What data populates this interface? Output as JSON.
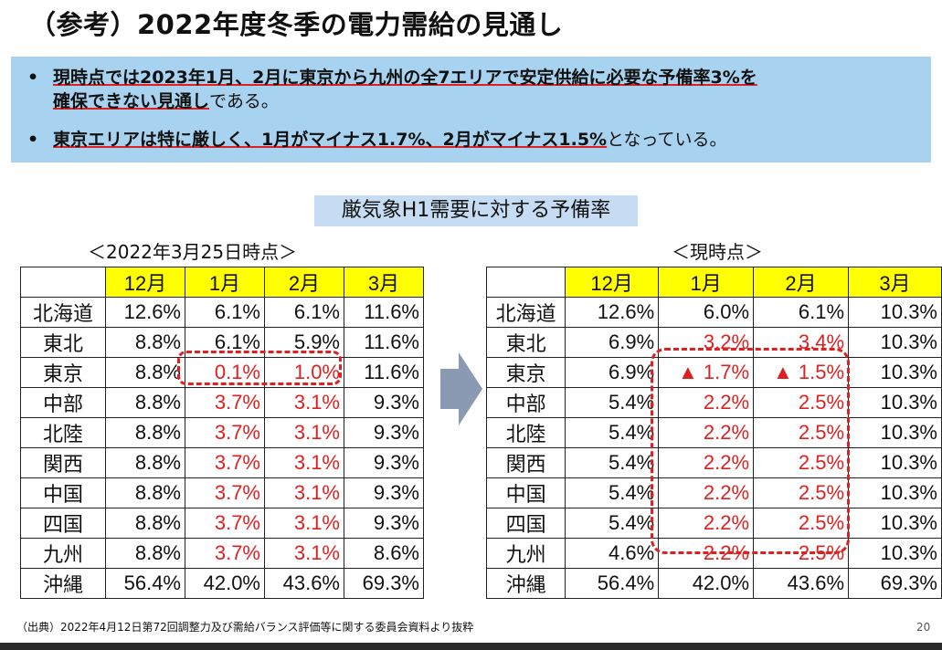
{
  "title": "（参考）2022年度冬季の電力需給の見通し",
  "summary": {
    "bullet_mark": "•",
    "bullet1_bold_a": "現時点では2023年1月、2月に東京から九州の全7エリアで安定供給に必要な予備率3%を",
    "bullet1_bold_b": "確保できない見通し",
    "bullet1_tail": "である。",
    "bullet2_bold": "東京エリアは特に厳しく、1月がマイナス1.7%、2月がマイナス1.5%",
    "bullet2_tail": "となっている。"
  },
  "chart_title": "厳気象H1需要に対する予備率",
  "left_table": {
    "caption": "＜2022年3月25日時点＞",
    "headers": [
      "12月",
      "1月",
      "2月",
      "3月"
    ],
    "rows": [
      {
        "region": "北海道",
        "v": [
          "12.6%",
          "6.1%",
          "6.1%",
          "11.6%"
        ]
      },
      {
        "region": "東北",
        "v": [
          "8.8%",
          "6.1%",
          "5.9%",
          "11.6%"
        ]
      },
      {
        "region": "東京",
        "v": [
          "8.8%",
          "0.1%",
          "1.0%",
          "11.6%"
        ]
      },
      {
        "region": "中部",
        "v": [
          "8.8%",
          "3.7%",
          "3.1%",
          "9.3%"
        ]
      },
      {
        "region": "北陸",
        "v": [
          "8.8%",
          "3.7%",
          "3.1%",
          "9.3%"
        ]
      },
      {
        "region": "関西",
        "v": [
          "8.8%",
          "3.7%",
          "3.1%",
          "9.3%"
        ]
      },
      {
        "region": "中国",
        "v": [
          "8.8%",
          "3.7%",
          "3.1%",
          "9.3%"
        ]
      },
      {
        "region": "四国",
        "v": [
          "8.8%",
          "3.7%",
          "3.1%",
          "9.3%"
        ]
      },
      {
        "region": "九州",
        "v": [
          "8.8%",
          "3.7%",
          "3.1%",
          "8.6%"
        ]
      },
      {
        "region": "沖縄",
        "v": [
          "56.4%",
          "42.0%",
          "43.6%",
          "69.3%"
        ]
      }
    ]
  },
  "right_table": {
    "caption": "＜現時点＞",
    "headers": [
      "12月",
      "1月",
      "2月",
      "3月"
    ],
    "rows": [
      {
        "region": "北海道",
        "v": [
          "12.6%",
          "6.0%",
          "6.1%",
          "10.3%"
        ]
      },
      {
        "region": "東北",
        "v": [
          "6.9%",
          "3.2%",
          "3.4%",
          "10.3%"
        ]
      },
      {
        "region": "東京",
        "v": [
          "6.9%",
          "▲ 1.7%",
          "▲ 1.5%",
          "10.3%"
        ]
      },
      {
        "region": "中部",
        "v": [
          "5.4%",
          "2.2%",
          "2.5%",
          "10.3%"
        ]
      },
      {
        "region": "北陸",
        "v": [
          "5.4%",
          "2.2%",
          "2.5%",
          "10.3%"
        ]
      },
      {
        "region": "関西",
        "v": [
          "5.4%",
          "2.2%",
          "2.5%",
          "10.3%"
        ]
      },
      {
        "region": "中国",
        "v": [
          "5.4%",
          "2.2%",
          "2.5%",
          "10.3%"
        ]
      },
      {
        "region": "四国",
        "v": [
          "5.4%",
          "2.2%",
          "2.5%",
          "10.3%"
        ]
      },
      {
        "region": "九州",
        "v": [
          "4.6%",
          "2.2%",
          "2.5%",
          "10.3%"
        ]
      },
      {
        "region": "沖縄",
        "v": [
          "56.4%",
          "42.0%",
          "43.6%",
          "69.3%"
        ]
      }
    ]
  },
  "source": "（出典）2022年4月12日第72回調整力及び需給バランス評価等に関する委員会資料より抜粋",
  "page_number": "20",
  "colors": {
    "highlight_red": "#e02020",
    "header_yellow": "#ffff00",
    "summary_bg": "#a7d3f0",
    "chart_title_bg": "#c5dcf2",
    "arrow": "#8a9ab3"
  }
}
